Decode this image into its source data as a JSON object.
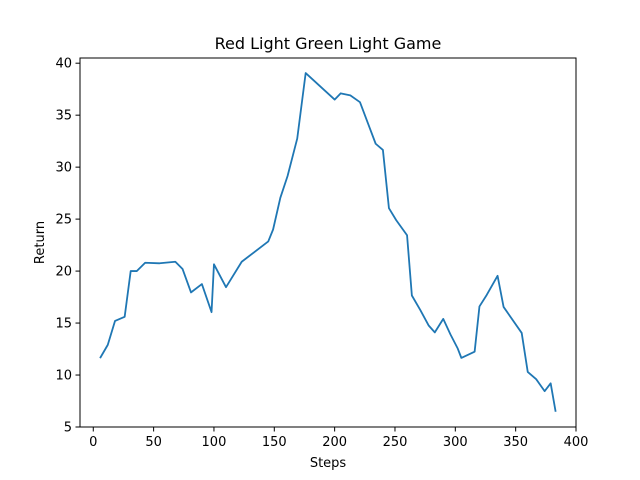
{
  "chart_data": {
    "type": "line",
    "title": "Red Light Green Light Game",
    "xlabel": "Steps",
    "ylabel": "Return",
    "xlim": [
      -11,
      400
    ],
    "ylim": [
      5,
      40.5
    ],
    "xticks": [
      0,
      50,
      100,
      150,
      200,
      250,
      300,
      350,
      400
    ],
    "yticks": [
      5,
      10,
      15,
      20,
      25,
      30,
      35,
      40
    ],
    "grid": false,
    "legend": "none",
    "series": [
      {
        "color": "#1f77b4",
        "x": [
          6,
          12,
          18,
          26,
          31,
          36,
          43,
          55,
          68,
          74,
          81,
          90,
          98,
          100,
          110,
          123,
          145,
          149,
          155,
          161,
          169,
          176,
          200,
          205,
          213,
          221,
          234,
          240,
          245,
          251,
          260,
          264,
          271,
          278,
          283,
          290,
          296,
          302,
          305,
          316,
          320,
          326,
          335,
          340,
          355,
          360,
          367,
          374,
          379,
          383
        ],
        "y": [
          11.7,
          12.9,
          15.2,
          15.6,
          20.0,
          20.0,
          20.8,
          20.75,
          20.9,
          20.2,
          17.95,
          18.75,
          16.05,
          20.65,
          18.45,
          20.9,
          22.85,
          24.0,
          27.05,
          29.15,
          32.75,
          39.05,
          36.5,
          37.1,
          36.9,
          36.25,
          32.25,
          31.65,
          26.05,
          24.9,
          23.45,
          17.65,
          16.25,
          14.75,
          14.1,
          15.4,
          13.9,
          12.55,
          11.65,
          12.25,
          16.6,
          17.7,
          19.55,
          16.55,
          14.05,
          10.3,
          9.6,
          8.45,
          9.2,
          6.55
        ]
      }
    ]
  }
}
